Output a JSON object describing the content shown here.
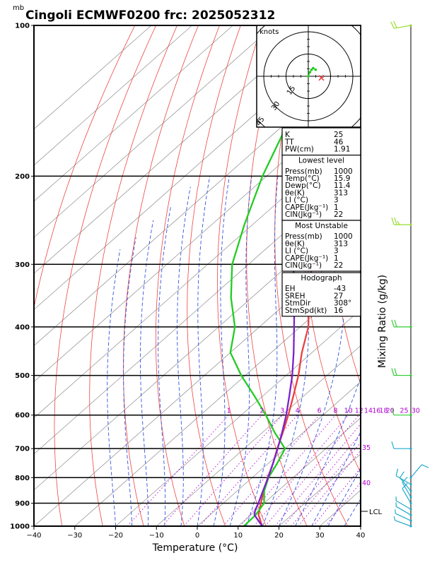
{
  "title": "Cingoli ECMWF0200  frc: 2025052312",
  "pressure_unit": "mb",
  "xlabel": "Temperature (°C)",
  "mixing_ratio_label": "Mixing Ratio (g/kg)",
  "hodograph": {
    "units_label": "knots",
    "ring_labels": [
      "15",
      "30",
      "45"
    ]
  },
  "mixing_ratio_lines": [
    "1",
    "2",
    "3",
    "4",
    "6",
    "8",
    "10",
    "12",
    "14",
    "16",
    "18",
    "20",
    "25",
    "30"
  ],
  "theta_e_labels": [
    "35",
    "40"
  ],
  "lcl_label": "LCL",
  "indices": {
    "top": [
      {
        "label": "K",
        "value": "25"
      },
      {
        "label": "TT",
        "value": "46"
      },
      {
        "label": "PW(cm)",
        "value": "1.91"
      }
    ],
    "lowest_level": {
      "header": "Lowest level",
      "rows": [
        {
          "label": "Press(mb)",
          "value": "1000"
        },
        {
          "label": "Temp(°C)",
          "value": "15.9"
        },
        {
          "label": "Dewp(°C)",
          "value": "11.4"
        },
        {
          "label": "θe(K)",
          "value": "313"
        },
        {
          "label": "LI (°C)",
          "value": "3"
        },
        {
          "label": "CAPE(Jkg⁻¹)",
          "value": "1"
        },
        {
          "label": "CIN(Jkg⁻¹)",
          "value": "22"
        }
      ]
    },
    "most_unstable": {
      "header": "Most Unstable",
      "rows": [
        {
          "label": "Press(mb)",
          "value": "1000"
        },
        {
          "label": "θe(K)",
          "value": "313"
        },
        {
          "label": "LI (°C)",
          "value": "3"
        },
        {
          "label": "CAPE(Jkg⁻¹)",
          "value": "1"
        },
        {
          "label": "CIN(Jkg⁻¹)",
          "value": "22"
        }
      ]
    },
    "hodograph": {
      "header": "Hodograph",
      "rows": [
        {
          "label": "EH",
          "value": "-43"
        },
        {
          "label": "SREH",
          "value": "27"
        },
        {
          "label": "StmDir",
          "value": "308°"
        },
        {
          "label": "StmSpd(kt)",
          "value": "16"
        }
      ]
    }
  },
  "colors": {
    "temperature": "#e84040",
    "dewpoint": "#22cc22",
    "parcel": "#7a22cc",
    "isotherm": "#999999",
    "dry_adiabat": "#ee4444",
    "moist_adiabat": "#3355dd",
    "mixing_ratio": "#b000d0",
    "barb_lower": "#22aacc",
    "barb_mid": "#33cc33",
    "barb_upper": "#99dd33"
  },
  "chart_data": {
    "type": "line",
    "title": "Cingoli ECMWF0200  frc: 2025052312",
    "xlabel": "Temperature (°C)",
    "ylabel": "mb",
    "xlim": [
      -40,
      40
    ],
    "ylim": [
      1000,
      100
    ],
    "y_scale": "log",
    "x_ticks": [
      -40,
      -30,
      -20,
      -10,
      0,
      10,
      20,
      30,
      40
    ],
    "y_ticks": [
      100,
      200,
      300,
      400,
      500,
      600,
      700,
      800,
      900,
      1000
    ],
    "series": [
      {
        "key": "temperature",
        "points": [
          [
            1000,
            15.9
          ],
          [
            950,
            11.9
          ],
          [
            900,
            9.2
          ],
          [
            850,
            6.5
          ],
          [
            800,
            3.8
          ],
          [
            750,
            1.2
          ],
          [
            700,
            -1.9
          ],
          [
            650,
            -5.0
          ],
          [
            600,
            -8.5
          ],
          [
            550,
            -12.5
          ],
          [
            500,
            -17.0
          ],
          [
            450,
            -22.5
          ],
          [
            400,
            -28.0
          ],
          [
            350,
            -36.0
          ],
          [
            300,
            -44.5
          ],
          [
            250,
            -54.5
          ],
          [
            230,
            -55.0
          ],
          [
            200,
            -53.0
          ],
          [
            150,
            -55.0
          ],
          [
            100,
            -58.0
          ]
        ]
      },
      {
        "key": "dewpoint",
        "points": [
          [
            1000,
            11.4
          ],
          [
            950,
            11.2
          ],
          [
            900,
            10.0
          ],
          [
            850,
            6.6
          ],
          [
            800,
            4.0
          ],
          [
            750,
            2.2
          ],
          [
            700,
            0.0
          ],
          [
            650,
            -7.0
          ],
          [
            600,
            -14.0
          ],
          [
            550,
            -22.0
          ],
          [
            500,
            -31.0
          ],
          [
            450,
            -40.0
          ],
          [
            400,
            -46.0
          ],
          [
            350,
            -55.0
          ],
          [
            300,
            -64.0
          ],
          [
            250,
            -72.0
          ],
          [
            200,
            -81.0
          ],
          [
            150,
            -91.0
          ],
          [
            100,
            -100.0
          ]
        ]
      },
      {
        "key": "parcel",
        "points": [
          [
            1000,
            15.9
          ],
          [
            950,
            10.9
          ],
          [
            930,
            9.8
          ],
          [
            900,
            8.6
          ],
          [
            850,
            6.3
          ],
          [
            800,
            3.9
          ],
          [
            750,
            1.2
          ],
          [
            700,
            -1.8
          ],
          [
            650,
            -5.2
          ],
          [
            600,
            -9.0
          ],
          [
            550,
            -13.5
          ],
          [
            500,
            -18.5
          ],
          [
            450,
            -24.5
          ],
          [
            400,
            -31.5
          ],
          [
            350,
            -39.5
          ],
          [
            300,
            -49.0
          ],
          [
            250,
            -59.5
          ],
          [
            200,
            -71.0
          ],
          [
            150,
            -86.0
          ],
          [
            100,
            -104.0
          ]
        ]
      }
    ],
    "lcl_pressure": 930,
    "wind_barbs": [
      {
        "p": 1000,
        "dir": 290,
        "spd": 5
      },
      {
        "p": 975,
        "dir": 295,
        "spd": 5
      },
      {
        "p": 950,
        "dir": 300,
        "spd": 5
      },
      {
        "p": 925,
        "dir": 300,
        "spd": 5
      },
      {
        "p": 900,
        "dir": 330,
        "spd": 10
      },
      {
        "p": 875,
        "dir": 330,
        "spd": 10
      },
      {
        "p": 850,
        "dir": 320,
        "spd": 10
      },
      {
        "p": 825,
        "dir": 300,
        "spd": 10
      },
      {
        "p": 800,
        "dir": 40,
        "spd": 10
      },
      {
        "p": 700,
        "dir": 270,
        "spd": 10
      },
      {
        "p": 600,
        "dir": 270,
        "spd": 10
      },
      {
        "p": 500,
        "dir": 270,
        "spd": 20
      },
      {
        "p": 400,
        "dir": 270,
        "spd": 20
      },
      {
        "p": 250,
        "dir": 270,
        "spd": 25
      },
      {
        "p": 100,
        "dir": 260,
        "spd": 20
      }
    ],
    "hodograph_points": [
      [
        0,
        0
      ],
      [
        2,
        5
      ],
      [
        4,
        8
      ],
      [
        6,
        10
      ],
      [
        9,
        8
      ]
    ],
    "storm_motion": [
      16,
      -2
    ]
  }
}
